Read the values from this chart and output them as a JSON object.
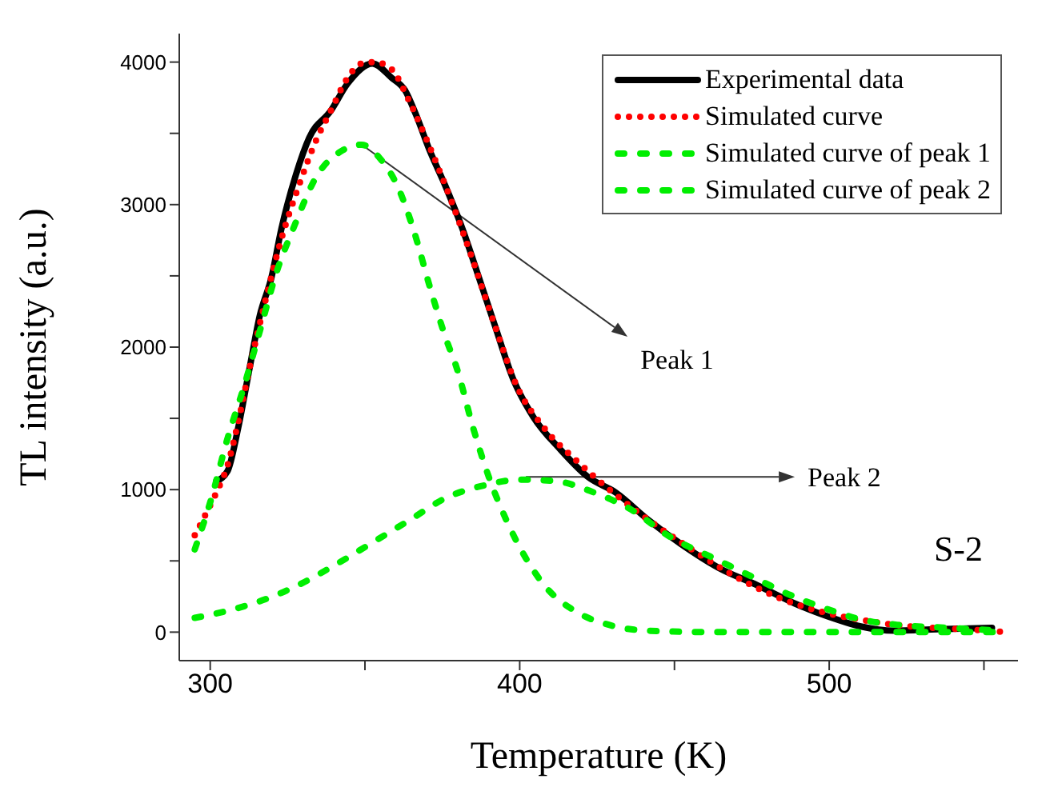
{
  "chart_data": {
    "type": "line",
    "xlabel": "Temperature (K)",
    "ylabel": "TL intensity (a.u.)",
    "xlim": [
      290,
      561
    ],
    "xticks": [
      300,
      {
        "value": 350,
        "label": null
      },
      400,
      {
        "value": 450,
        "label": null
      },
      500,
      {
        "value": 550,
        "label": null
      }
    ],
    "ylim": [
      -200,
      4200
    ],
    "yticks": [
      0,
      {
        "value": 500,
        "label": null
      },
      1000,
      {
        "value": 1500,
        "label": null
      },
      2000,
      {
        "value": 2500,
        "label": null
      },
      3000,
      {
        "value": 3500,
        "label": null
      },
      4000
    ],
    "legend": "top right",
    "marker": "none",
    "annotations": [
      {
        "text": "Peak 1",
        "x": 349,
        "y": 3420
      },
      {
        "text": "Peak 2",
        "x": 402,
        "y": 1090
      },
      "S-2"
    ],
    "series": [
      {
        "name": "Experimental data",
        "color": "#000000",
        "line_style": "solid",
        "x": [
          302,
          305.6,
          309,
          312.7,
          316,
          319.8,
          323,
          327.7,
          332,
          339,
          344.4,
          352.4,
          358.6,
          363,
          366.5,
          370.9,
          376,
          381.5,
          386.8,
          392,
          398,
          404.4,
          413.2,
          422,
          431,
          441.4,
          452,
          464.4,
          476.7,
          489,
          499.6,
          510.2,
          520.8,
          535,
          552.6
        ],
        "values": [
          1060,
          1130,
          1430,
          1850,
          2220,
          2490,
          2830,
          3210,
          3470,
          3660,
          3850,
          3990,
          3890,
          3800,
          3630,
          3380,
          3130,
          2830,
          2490,
          2150,
          1770,
          1510,
          1280,
          1090,
          980,
          790,
          620,
          450,
          330,
          200,
          110,
          40,
          10,
          20,
          30
        ]
      },
      {
        "name": "Simulated curve",
        "color": "#ff0000",
        "line_style": "dotted",
        "x": [
          295,
          298.6,
          302,
          305.6,
          309,
          312.7,
          318,
          323,
          328.6,
          334,
          339,
          344.4,
          348.9,
          353.3,
          358.6,
          364,
          371,
          378,
          385,
          392,
          399,
          408,
          418.5,
          429,
          441.4,
          455.6,
          469.7,
          483.8,
          498,
          512,
          526,
          543.7,
          557.8
        ],
        "values": [
          680,
          830,
          980,
          1170,
          1470,
          1850,
          2340,
          2760,
          3130,
          3440,
          3660,
          3890,
          3990,
          4000,
          3950,
          3740,
          3400,
          3020,
          2600,
          2150,
          1730,
          1430,
          1200,
          1000,
          790,
          580,
          390,
          240,
          140,
          80,
          40,
          20,
          0
        ]
      },
      {
        "name": "Simulated curve of peak 1",
        "color": "#00ee00",
        "line_style": "dashed",
        "x": [
          295,
          300.4,
          305.6,
          311,
          316,
          321.5,
          326.8,
          334.7,
          342.7,
          348.9,
          355,
          360.5,
          365.6,
          371,
          376,
          379.7,
          385,
          390,
          395.6,
          400.9,
          407.9,
          418.5,
          429,
          441.4,
          464.4,
          499.6,
          556
        ],
        "values": [
          580,
          940,
          1360,
          1730,
          2110,
          2530,
          2830,
          3210,
          3380,
          3420,
          3320,
          3130,
          2830,
          2420,
          2070,
          1850,
          1430,
          1090,
          790,
          560,
          330,
          140,
          50,
          10,
          0,
          0,
          0
        ]
      },
      {
        "name": "Simulated curve of peak 2",
        "color": "#00ee00",
        "line_style": "dashed",
        "x": [
          295,
          307.4,
          319,
          330.3,
          341,
          353.3,
          364.7,
          376,
          388.5,
          400,
          411.5,
          424,
          436,
          448.5,
          462.6,
          475,
          487.5,
          499.6,
          510,
          522.6,
          538.5,
          556
        ],
        "values": [
          100,
          160,
          240,
          350,
          480,
          640,
          790,
          940,
          1030,
          1070,
          1060,
          980,
          860,
          670,
          520,
          390,
          260,
          160,
          90,
          50,
          30,
          10
        ]
      }
    ]
  }
}
